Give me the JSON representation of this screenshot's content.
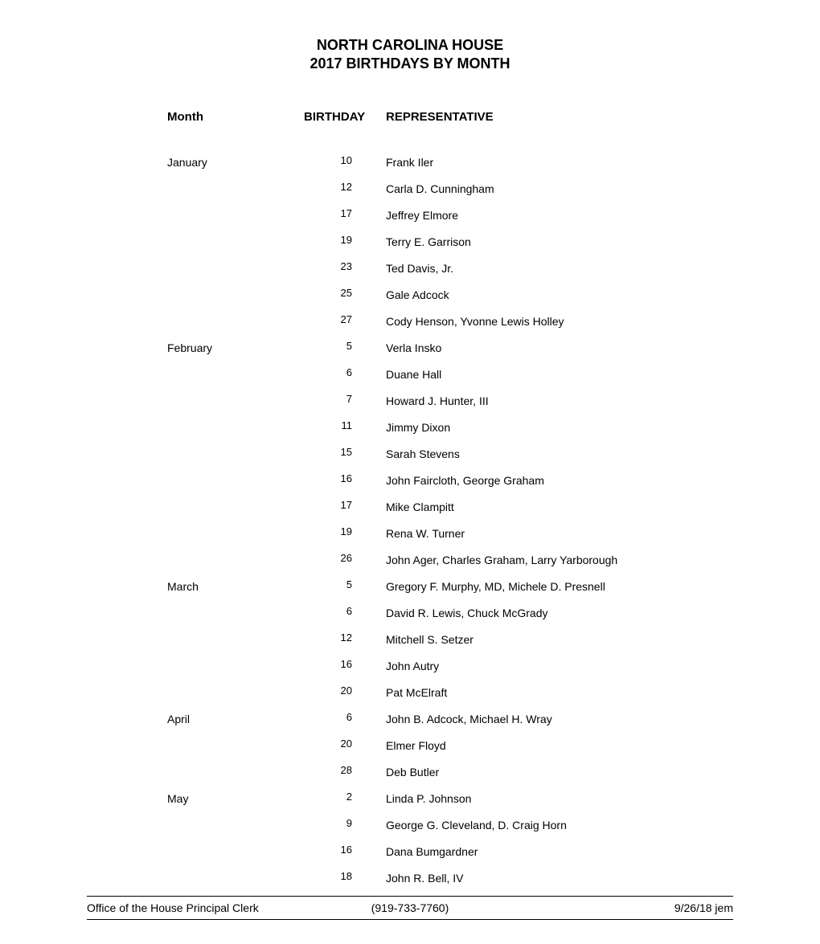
{
  "title": {
    "line1": "NORTH CAROLINA HOUSE",
    "line2": "2017 BIRTHDAYS BY MONTH"
  },
  "columns": {
    "month": "Month",
    "birthday": "BIRTHDAY",
    "representative": "REPRESENTATIVE"
  },
  "rows": [
    {
      "month": "January",
      "day": "10",
      "rep": "Frank Iler"
    },
    {
      "month": "",
      "day": "12",
      "rep": "Carla D. Cunningham"
    },
    {
      "month": "",
      "day": "17",
      "rep": "Jeffrey Elmore"
    },
    {
      "month": "",
      "day": "19",
      "rep": "Terry E. Garrison"
    },
    {
      "month": "",
      "day": "23",
      "rep": "Ted Davis, Jr."
    },
    {
      "month": "",
      "day": "25",
      "rep": "Gale Adcock"
    },
    {
      "month": "",
      "day": "27",
      "rep": "Cody Henson, Yvonne Lewis Holley"
    },
    {
      "month": "February",
      "day": "5",
      "rep": "Verla Insko"
    },
    {
      "month": "",
      "day": "6",
      "rep": "Duane Hall"
    },
    {
      "month": "",
      "day": "7",
      "rep": "Howard J. Hunter, III"
    },
    {
      "month": "",
      "day": "11",
      "rep": "Jimmy Dixon"
    },
    {
      "month": "",
      "day": "15",
      "rep": "Sarah Stevens"
    },
    {
      "month": "",
      "day": "16",
      "rep": "John Faircloth, George Graham"
    },
    {
      "month": "",
      "day": "17",
      "rep": "Mike Clampitt"
    },
    {
      "month": "",
      "day": "19",
      "rep": "Rena W. Turner"
    },
    {
      "month": "",
      "day": "26",
      "rep": "John Ager, Charles Graham, Larry Yarborough"
    },
    {
      "month": "March",
      "day": "5",
      "rep": "Gregory F. Murphy, MD, Michele D. Presnell"
    },
    {
      "month": "",
      "day": "6",
      "rep": "David R. Lewis, Chuck McGrady"
    },
    {
      "month": "",
      "day": "12",
      "rep": "Mitchell S. Setzer"
    },
    {
      "month": "",
      "day": "16",
      "rep": "John Autry"
    },
    {
      "month": "",
      "day": "20",
      "rep": "Pat McElraft"
    },
    {
      "month": "April",
      "day": "6",
      "rep": "John B. Adcock, Michael H. Wray"
    },
    {
      "month": "",
      "day": "20",
      "rep": "Elmer Floyd"
    },
    {
      "month": "",
      "day": "28",
      "rep": "Deb Butler"
    },
    {
      "month": "May",
      "day": "2",
      "rep": "Linda P. Johnson"
    },
    {
      "month": "",
      "day": "9",
      "rep": "George G. Cleveland, D. Craig Horn"
    },
    {
      "month": "",
      "day": "16",
      "rep": "Dana Bumgardner"
    },
    {
      "month": "",
      "day": "18",
      "rep": "John R. Bell, IV"
    }
  ],
  "footer": {
    "left": "Office of the House Principal Clerk",
    "center": "(919-733-7760)",
    "right": "9/26/18 jem"
  },
  "colors": {
    "text": "#000000",
    "background": "#ffffff",
    "rule": "#000000"
  },
  "typography": {
    "title_fontsize_pt": 13,
    "header_fontsize_pt": 11,
    "body_fontsize_pt": 10,
    "font_family": "Arial"
  }
}
